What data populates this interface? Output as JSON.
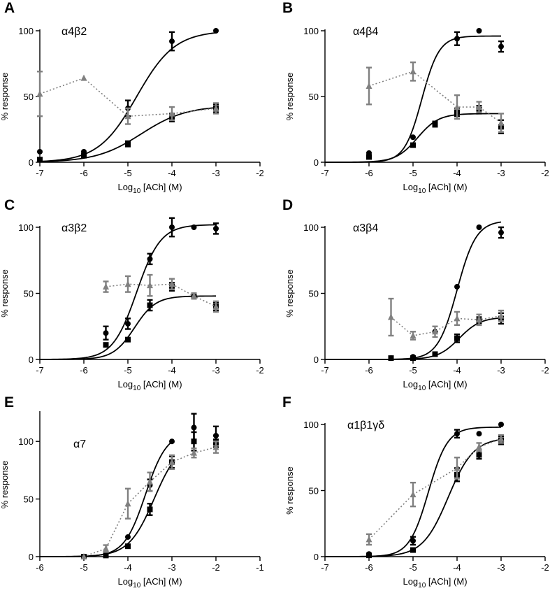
{
  "chart_data": [
    {
      "type": "scatter",
      "panel": "A",
      "title": "α4β2",
      "xlabel": "Log10 [ACh] (M)",
      "xlabel_base": "Log",
      "xlabel_sub": "10",
      "xlabel_rest": " [ACh] (M)",
      "ylabel": "% response",
      "xlim": [
        -7,
        -2
      ],
      "ylim": [
        0,
        100
      ],
      "xticks": [
        -7,
        -6,
        -5,
        -4,
        -3,
        -2
      ],
      "xtick_labels": [
        "-7",
        "-6",
        "-5",
        "-4",
        "-3",
        "-2"
      ],
      "yticks": [
        0,
        50,
        100
      ],
      "ytick_labels": [
        "0",
        "50",
        "100"
      ],
      "series": [
        {
          "marker": "circle",
          "color": "#000000",
          "line": "solid",
          "x": [
            -7,
            -6,
            -5,
            -4,
            -3
          ],
          "y": [
            8,
            8,
            41,
            92,
            100
          ],
          "err": [
            0,
            0,
            6,
            7,
            0
          ],
          "fit": {
            "bottom": 0,
            "top": 100,
            "logec50": -4.8,
            "hill": 1.0
          }
        },
        {
          "marker": "square",
          "color": "#000000",
          "line": "solid",
          "x": [
            -7,
            -6,
            -5,
            -4,
            -3
          ],
          "y": [
            2,
            5,
            14,
            34,
            41
          ],
          "err": [
            0,
            0,
            2,
            3,
            3
          ],
          "fit": {
            "bottom": 0,
            "top": 43,
            "logec50": -4.7,
            "hill": 0.85
          }
        },
        {
          "marker": "triangle",
          "color": "#808080",
          "line": "dotted",
          "x": [
            -7,
            -6,
            -5,
            -4,
            -3
          ],
          "y": [
            52,
            64,
            35,
            37,
            41
          ],
          "err": [
            17,
            0,
            6,
            5,
            4
          ]
        }
      ]
    },
    {
      "type": "scatter",
      "panel": "B",
      "title": "α4β4",
      "xlabel": "Log10 [ACh] (M)",
      "xlabel_base": "Log",
      "xlabel_sub": "10",
      "xlabel_rest": " [ACh] (M)",
      "ylabel": "% response",
      "xlim": [
        -7,
        -2
      ],
      "ylim": [
        0,
        100
      ],
      "xticks": [
        -7,
        -6,
        -5,
        -4,
        -3,
        -2
      ],
      "xtick_labels": [
        "-7",
        "-6",
        "-5",
        "-4",
        "-3",
        "-2"
      ],
      "yticks": [
        0,
        50,
        100
      ],
      "ytick_labels": [
        "0",
        "50",
        "100"
      ],
      "series": [
        {
          "marker": "circle",
          "color": "#000000",
          "line": "solid",
          "x": [
            -6,
            -5,
            -4,
            -3.5,
            -3
          ],
          "y": [
            7,
            19,
            94,
            100,
            88
          ],
          "err": [
            0,
            0,
            5,
            0,
            4
          ],
          "fit": {
            "bottom": 0,
            "top": 96,
            "logec50": -4.8,
            "hill": 2.2
          }
        },
        {
          "marker": "square",
          "color": "#000000",
          "line": "solid",
          "x": [
            -6,
            -5,
            -4.5,
            -4,
            -3.5,
            -3
          ],
          "y": [
            4,
            13,
            29,
            38,
            40,
            27
          ],
          "err": [
            0,
            0,
            2,
            3,
            3,
            5
          ],
          "fit": {
            "bottom": 0,
            "top": 37,
            "logec50": -4.9,
            "hill": 1.8
          }
        },
        {
          "marker": "triangle",
          "color": "#808080",
          "line": "dotted",
          "x": [
            -6,
            -5,
            -4,
            -3.5,
            -3
          ],
          "y": [
            58,
            69,
            42,
            42,
            30
          ],
          "err": [
            14,
            7,
            9,
            4,
            7
          ]
        }
      ]
    },
    {
      "type": "scatter",
      "panel": "C",
      "title": "α3β2",
      "xlabel": "Log10 [ACh] (M)",
      "xlabel_base": "Log",
      "xlabel_sub": "10",
      "xlabel_rest": " [ACh] (M)",
      "ylabel": "% response",
      "xlim": [
        -7,
        -2
      ],
      "ylim": [
        0,
        100
      ],
      "xticks": [
        -7,
        -6,
        -5,
        -4,
        -3,
        -2
      ],
      "xtick_labels": [
        "-7",
        "-6",
        "-5",
        "-4",
        "-3",
        "-2"
      ],
      "yticks": [
        0,
        50,
        100
      ],
      "ytick_labels": [
        "0",
        "50",
        "100"
      ],
      "series": [
        {
          "marker": "circle",
          "color": "#000000",
          "line": "solid",
          "x": [
            -5.5,
            -5,
            -4.5,
            -4,
            -3.5,
            -3
          ],
          "y": [
            20,
            27,
            76,
            100,
            100,
            99
          ],
          "err": [
            5,
            4,
            4,
            7,
            0,
            4
          ],
          "fit": {
            "bottom": 0,
            "top": 102,
            "logec50": -4.8,
            "hill": 1.6
          }
        },
        {
          "marker": "square",
          "color": "#000000",
          "line": "solid",
          "x": [
            -5.5,
            -5,
            -4.5,
            -4,
            -3.5,
            -3
          ],
          "y": [
            11,
            15,
            41,
            55,
            48,
            40
          ],
          "err": [
            0,
            0,
            4,
            3,
            2,
            3
          ],
          "fit": {
            "bottom": 0,
            "top": 48,
            "logec50": -4.85,
            "hill": 1.8
          }
        },
        {
          "marker": "triangle",
          "color": "#808080",
          "line": "dotted",
          "x": [
            -5.5,
            -5,
            -4.5,
            -4,
            -3.5,
            -3
          ],
          "y": [
            55,
            57,
            56,
            57,
            48,
            40
          ],
          "err": [
            4,
            6,
            8,
            4,
            2,
            4
          ]
        }
      ]
    },
    {
      "type": "scatter",
      "panel": "D",
      "title": "α3β4",
      "xlabel": "Log10 [ACh] (M)",
      "xlabel_base": "Log",
      "xlabel_sub": "10",
      "xlabel_rest": " [ACh] (M)",
      "ylabel": "% response",
      "xlim": [
        -7,
        -2
      ],
      "ylim": [
        0,
        100
      ],
      "xticks": [
        -7,
        -6,
        -5,
        -4,
        -3,
        -2
      ],
      "xtick_labels": [
        "-7",
        "-6",
        "-5",
        "-4",
        "-3",
        "-2"
      ],
      "yticks": [
        0,
        50,
        100
      ],
      "ytick_labels": [
        "0",
        "50",
        "100"
      ],
      "series": [
        {
          "marker": "circle",
          "color": "#000000",
          "line": "solid",
          "x": [
            -5.5,
            -5,
            -4.5,
            -4,
            -3.5,
            -3
          ],
          "y": [
            1,
            2,
            21,
            55,
            100,
            96
          ],
          "err": [
            0,
            0,
            0,
            0,
            0,
            4
          ],
          "fit": {
            "bottom": 0,
            "top": 105,
            "logec50": -4.0,
            "hill": 2.0
          }
        },
        {
          "marker": "square",
          "color": "#000000",
          "line": "solid",
          "x": [
            -5.5,
            -5,
            -4.5,
            -4,
            -3.5,
            -3
          ],
          "y": [
            1,
            1,
            4,
            16,
            29,
            31
          ],
          "err": [
            0,
            0,
            0,
            3,
            3,
            4
          ],
          "fit": {
            "bottom": 0,
            "top": 32,
            "logec50": -3.95,
            "hill": 1.8
          }
        },
        {
          "marker": "triangle",
          "color": "#808080",
          "line": "dotted",
          "x": [
            -5.5,
            -5,
            -4.5,
            -4,
            -3.5,
            -3
          ],
          "y": [
            32,
            18,
            21,
            31,
            30,
            33
          ],
          "err": [
            14,
            3,
            4,
            5,
            4,
            4
          ]
        }
      ]
    },
    {
      "type": "scatter",
      "panel": "E",
      "title": "α7",
      "xlabel": "Log10 [ACh] (M)",
      "xlabel_base": "Log",
      "xlabel_sub": "10",
      "xlabel_rest": " [ACh] (M)",
      "ylabel": "% response",
      "xlim": [
        -6,
        -1
      ],
      "ylim": [
        0,
        125
      ],
      "xticks": [
        -6,
        -5,
        -4,
        -3,
        -2,
        -1
      ],
      "xtick_labels": [
        "-6",
        "-5",
        "-4",
        "-3",
        "-2",
        "-1"
      ],
      "yticks": [
        0,
        50,
        100
      ],
      "ytick_labels": [
        "0",
        "50",
        "100"
      ],
      "series": [
        {
          "marker": "circle",
          "color": "#000000",
          "line": "solid",
          "x": [
            -5,
            -4.5,
            -4,
            -3.5,
            -3,
            -2.5,
            -2
          ],
          "y": [
            0,
            4,
            17,
            62,
            100,
            112,
            105
          ],
          "err": [
            0,
            0,
            0,
            5,
            0,
            12,
            8
          ],
          "fit": {
            "bottom": 0,
            "top": 108,
            "logec50": -3.6,
            "hill": 1.8
          }
        },
        {
          "marker": "square",
          "color": "#000000",
          "line": "solid",
          "x": [
            -5,
            -4.5,
            -4,
            -3.5,
            -3,
            -2.5,
            -2
          ],
          "y": [
            0,
            1,
            9,
            41,
            82,
            100,
            100
          ],
          "err": [
            0,
            0,
            0,
            5,
            5,
            8,
            5
          ],
          "fit": {
            "bottom": 0,
            "top": 101,
            "logec50": -3.4,
            "hill": 1.5
          }
        },
        {
          "marker": "triangle",
          "color": "#808080",
          "line": "dotted",
          "x": [
            -5,
            -4.5,
            -4,
            -3.5,
            -3,
            -2.5,
            -2
          ],
          "y": [
            0,
            7,
            46,
            65,
            82,
            90,
            95
          ],
          "err": [
            0,
            3,
            13,
            8,
            6,
            4,
            5
          ]
        }
      ]
    },
    {
      "type": "scatter",
      "panel": "F",
      "title": "α1β1γδ",
      "xlabel": "Log10 [ACh] (M)",
      "xlabel_base": "Log",
      "xlabel_sub": "10",
      "xlabel_rest": " [ACh] (M)",
      "ylabel": "% response",
      "xlim": [
        -7,
        -2
      ],
      "ylim": [
        0,
        100
      ],
      "xticks": [
        -7,
        -6,
        -5,
        -4,
        -3,
        -2
      ],
      "xtick_labels": [
        "-7",
        "-6",
        "-5",
        "-4",
        "-3",
        "-2"
      ],
      "yticks": [
        0,
        50,
        100
      ],
      "ytick_labels": [
        "0",
        "50",
        "100"
      ],
      "series": [
        {
          "marker": "circle",
          "color": "#000000",
          "line": "solid",
          "x": [
            -6,
            -5,
            -4,
            -3.5,
            -3
          ],
          "y": [
            2,
            12,
            93,
            93,
            100
          ],
          "err": [
            0,
            3,
            3,
            0,
            0
          ],
          "fit": {
            "bottom": 0,
            "top": 98,
            "logec50": -4.65,
            "hill": 2.0
          }
        },
        {
          "marker": "square",
          "color": "#000000",
          "line": "solid",
          "x": [
            -6,
            -5,
            -4,
            -3.5,
            -3
          ],
          "y": [
            1,
            5,
            62,
            77,
            88
          ],
          "err": [
            0,
            0,
            5,
            3,
            3
          ],
          "fit": {
            "bottom": 0,
            "top": 90,
            "logec50": -4.2,
            "hill": 1.5
          }
        },
        {
          "marker": "triangle",
          "color": "#808080",
          "line": "dotted",
          "x": [
            -6,
            -5,
            -4,
            -3.5,
            -3
          ],
          "y": [
            13,
            47,
            67,
            83,
            89
          ],
          "err": [
            4,
            9,
            8,
            3,
            3
          ]
        }
      ]
    }
  ]
}
